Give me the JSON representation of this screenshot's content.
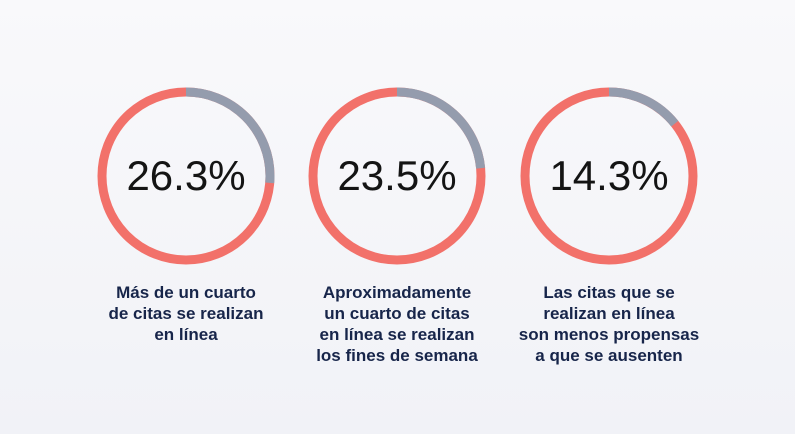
{
  "colors": {
    "primary": "#f2716a",
    "highlight": "#949cad",
    "text": "#17254a"
  },
  "chart_data": [
    {
      "type": "pie",
      "variant": "donut",
      "value": 26.3,
      "label": "26.3%",
      "caption": [
        "Más de un cuarto",
        "de citas se realizan",
        "en línea"
      ]
    },
    {
      "type": "pie",
      "variant": "donut",
      "value": 23.5,
      "label": "23.5%",
      "caption": [
        "Aproximadamente",
        "un cuarto de citas",
        "en línea se realizan",
        "los fines de semana"
      ]
    },
    {
      "type": "pie",
      "variant": "donut",
      "value": 14.3,
      "label": "14.3%",
      "caption": [
        "Las citas que se",
        "realizan en línea",
        "son menos propensas",
        "a que se ausenten"
      ]
    }
  ]
}
